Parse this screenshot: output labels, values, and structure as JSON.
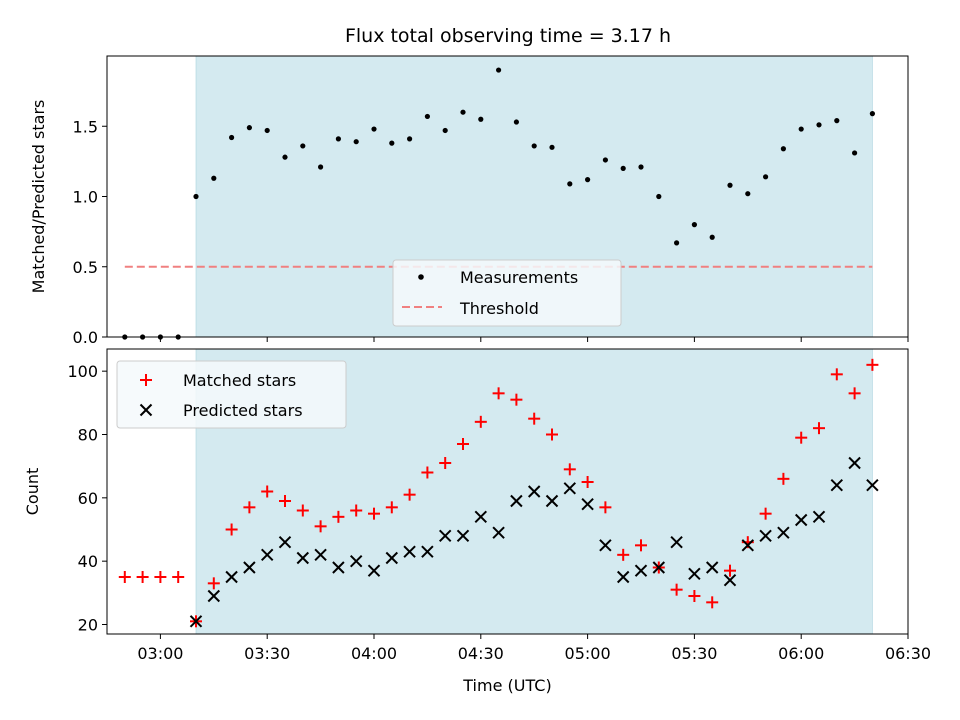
{
  "colors": {
    "shade": "#d4eaf0",
    "measurement": "#000000",
    "threshold": "#f08080",
    "matched": "#ff0000",
    "predicted": "#000000",
    "legend_bg": "#f5f9fc"
  },
  "chart_data": [
    {
      "type": "scatter",
      "title": "Flux total observing time = 3.17 h",
      "ylabel": "Matched/Predicted stars",
      "xlabel": "",
      "xlim": [
        "02:45",
        "06:30"
      ],
      "ylim": [
        0,
        2.0
      ],
      "yticks": [
        0.0,
        0.5,
        1.0,
        1.5
      ],
      "ytick_labels": [
        "0.0",
        "0.5",
        "1.0",
        "1.5"
      ],
      "shaded_span": [
        "03:10",
        "06:20"
      ],
      "legend": {
        "placement": "lower-center",
        "entries": [
          "Measurements",
          "Threshold"
        ]
      },
      "threshold": {
        "name": "Threshold",
        "y": 0.5,
        "x_range": [
          "02:50",
          "06:20"
        ]
      },
      "series": [
        {
          "name": "Measurements",
          "x": [
            "02:50",
            "02:55",
            "03:00",
            "03:05",
            "03:10",
            "03:15",
            "03:20",
            "03:25",
            "03:30",
            "03:35",
            "03:40",
            "03:45",
            "03:50",
            "03:55",
            "04:00",
            "04:05",
            "04:10",
            "04:15",
            "04:20",
            "04:25",
            "04:30",
            "04:35",
            "04:40",
            "04:45",
            "04:50",
            "04:55",
            "05:00",
            "05:05",
            "05:10",
            "05:15",
            "05:20",
            "05:25",
            "05:30",
            "05:35",
            "05:40",
            "05:45",
            "05:50",
            "05:55",
            "06:00",
            "06:05",
            "06:10",
            "06:15",
            "06:20"
          ],
          "y": [
            0,
            0,
            0,
            0,
            1.0,
            1.13,
            1.42,
            1.49,
            1.47,
            1.28,
            1.36,
            1.21,
            1.41,
            1.39,
            1.48,
            1.38,
            1.41,
            1.57,
            1.47,
            1.6,
            1.55,
            1.9,
            1.53,
            1.36,
            1.35,
            1.09,
            1.12,
            1.26,
            1.2,
            1.21,
            1.0,
            0.67,
            0.8,
            0.71,
            1.08,
            1.02,
            1.14,
            1.34,
            1.48,
            1.51,
            1.54,
            1.31,
            1.59
          ]
        }
      ]
    },
    {
      "type": "scatter",
      "title": "",
      "ylabel": "Count",
      "xlabel": "Time (UTC)",
      "xlim": [
        "02:45",
        "06:30"
      ],
      "ylim": [
        17,
        107
      ],
      "yticks": [
        20,
        40,
        60,
        80,
        100
      ],
      "ytick_labels": [
        "20",
        "40",
        "60",
        "80",
        "100"
      ],
      "xticks": [
        "03:00",
        "03:30",
        "04:00",
        "04:30",
        "05:00",
        "05:30",
        "06:00",
        "06:30"
      ],
      "xtick_labels": [
        "03:00",
        "03:30",
        "04:00",
        "04:30",
        "05:00",
        "05:30",
        "06:00",
        "06:30"
      ],
      "shaded_span": [
        "03:10",
        "06:20"
      ],
      "legend": {
        "placement": "top-left",
        "entries": [
          "Matched stars",
          "Predicted stars"
        ]
      },
      "series": [
        {
          "name": "Matched stars",
          "x": [
            "02:50",
            "02:55",
            "03:00",
            "03:05",
            "03:10",
            "03:15",
            "03:20",
            "03:25",
            "03:30",
            "03:35",
            "03:40",
            "03:45",
            "03:50",
            "03:55",
            "04:00",
            "04:05",
            "04:10",
            "04:15",
            "04:20",
            "04:25",
            "04:30",
            "04:35",
            "04:40",
            "04:45",
            "04:50",
            "04:55",
            "05:00",
            "05:05",
            "05:10",
            "05:15",
            "05:20",
            "05:25",
            "05:30",
            "05:35",
            "05:40",
            "05:45",
            "05:50",
            "05:55",
            "06:00",
            "06:05",
            "06:10",
            "06:15",
            "06:20"
          ],
          "y": [
            35,
            35,
            35,
            35,
            21,
            33,
            50,
            57,
            62,
            59,
            56,
            51,
            54,
            56,
            55,
            57,
            61,
            68,
            71,
            77,
            84,
            93,
            91,
            85,
            80,
            69,
            65,
            57,
            42,
            45,
            38,
            31,
            29,
            27,
            37,
            46,
            55,
            66,
            79,
            82,
            99,
            93,
            102
          ]
        },
        {
          "name": "Predicted stars",
          "x": [
            "03:10",
            "03:15",
            "03:20",
            "03:25",
            "03:30",
            "03:35",
            "03:40",
            "03:45",
            "03:50",
            "03:55",
            "04:00",
            "04:05",
            "04:10",
            "04:15",
            "04:20",
            "04:25",
            "04:30",
            "04:35",
            "04:40",
            "04:45",
            "04:50",
            "04:55",
            "05:00",
            "05:05",
            "05:10",
            "05:15",
            "05:20",
            "05:25",
            "05:30",
            "05:35",
            "05:40",
            "05:45",
            "05:50",
            "05:55",
            "06:00",
            "06:05",
            "06:10",
            "06:15",
            "06:20"
          ],
          "y": [
            21,
            29,
            35,
            38,
            42,
            46,
            41,
            42,
            38,
            40,
            37,
            41,
            43,
            43,
            48,
            48,
            54,
            49,
            59,
            62,
            59,
            63,
            58,
            45,
            35,
            37,
            38,
            46,
            36,
            38,
            34,
            45,
            48,
            49,
            53,
            54,
            64,
            71,
            64
          ]
        }
      ]
    }
  ]
}
